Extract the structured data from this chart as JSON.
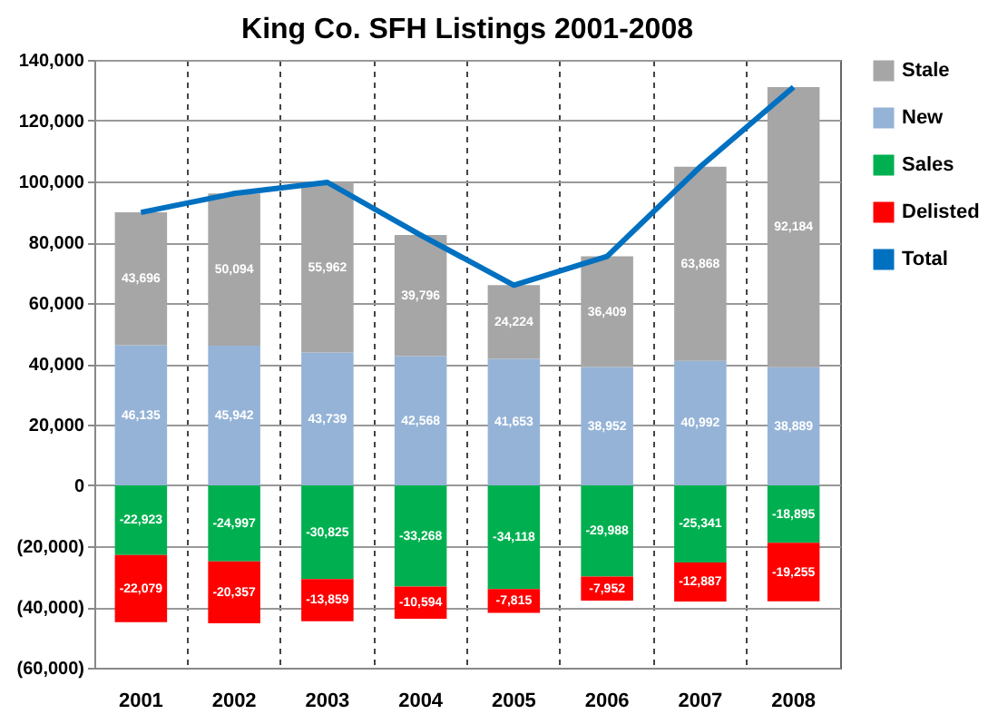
{
  "chart_data": {
    "type": "bar",
    "title": "King Co. SFH Listings 2001-2008",
    "stacked": true,
    "categories": [
      "2001",
      "2002",
      "2003",
      "2004",
      "2005",
      "2006",
      "2007",
      "2008"
    ],
    "series": [
      {
        "name": "New",
        "color": "#95b3d7",
        "values": [
          46135,
          45942,
          43739,
          42568,
          41653,
          38952,
          40992,
          38889
        ],
        "value_labels": [
          "46,135",
          "45,942",
          "43,739",
          "42,568",
          "41,653",
          "38,952",
          "40,992",
          "38,889"
        ]
      },
      {
        "name": "Stale",
        "color": "#a6a6a6",
        "values": [
          43696,
          50094,
          55962,
          39796,
          24224,
          36409,
          63868,
          92184
        ],
        "value_labels": [
          "43,696",
          "50,094",
          "55,962",
          "39,796",
          "24,224",
          "36,409",
          "63,868",
          "92,184"
        ]
      },
      {
        "name": "Sales",
        "color": "#00b050",
        "values": [
          -22923,
          -24997,
          -30825,
          -33268,
          -34118,
          -29988,
          -25341,
          -18895
        ],
        "value_labels": [
          "-22,923",
          "-24,997",
          "-30,825",
          "-33,268",
          "-34,118",
          "-29,988",
          "-25,341",
          "-18,895"
        ]
      },
      {
        "name": "Delisted",
        "color": "#ff0000",
        "values": [
          -22079,
          -20357,
          -13859,
          -10594,
          -7815,
          -7952,
          -12887,
          -19255
        ],
        "value_labels": [
          "-22,079",
          "-20,357",
          "-13,859",
          "-10,594",
          "-7,815",
          "-7,952",
          "-12,887",
          "-19,255"
        ]
      },
      {
        "name": "Total",
        "type": "line",
        "color": "#0070c0",
        "values": [
          89831,
          96036,
          99701,
          82364,
          65877,
          75361,
          104860,
          131073
        ]
      }
    ],
    "ylim": [
      -60000,
      140000
    ],
    "yticks": [
      {
        "value": -60000,
        "label": "(60,000)"
      },
      {
        "value": -40000,
        "label": "(40,000)"
      },
      {
        "value": -20000,
        "label": "(20,000)"
      },
      {
        "value": 0,
        "label": "0"
      },
      {
        "value": 20000,
        "label": "20,000"
      },
      {
        "value": 40000,
        "label": "40,000"
      },
      {
        "value": 60000,
        "label": "60,000"
      },
      {
        "value": 80000,
        "label": "80,000"
      },
      {
        "value": 100000,
        "label": "100,000"
      },
      {
        "value": 120000,
        "label": "120,000"
      },
      {
        "value": 140000,
        "label": "140,000"
      }
    ],
    "grid": true,
    "legend": "right"
  }
}
